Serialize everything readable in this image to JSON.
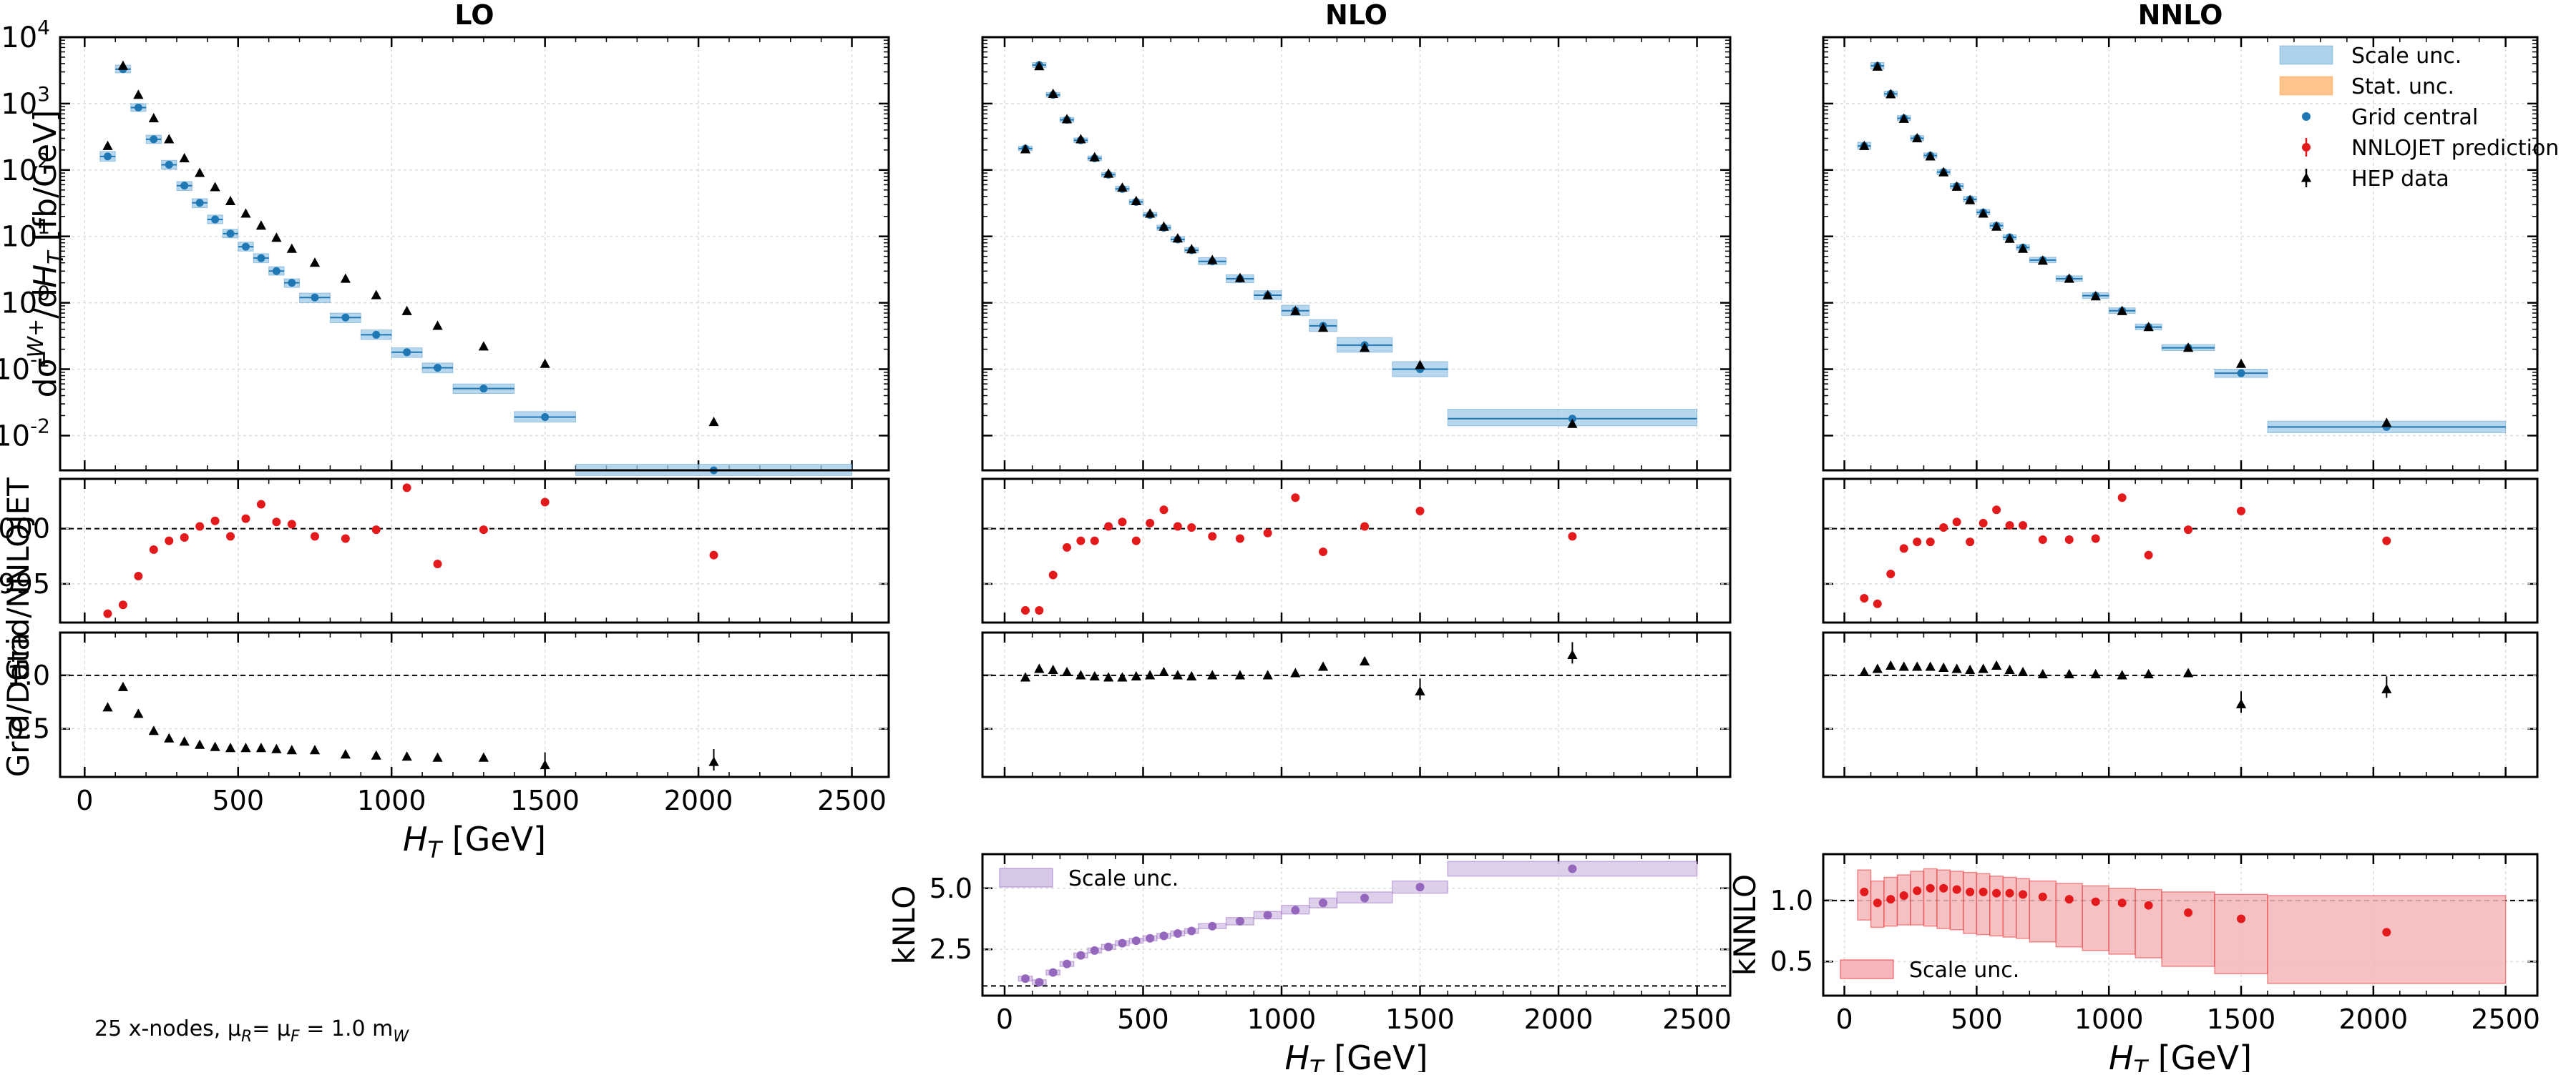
{
  "footnote": "25 x-nodes, μₘ= μⁱ = 1.0 mᵂ",
  "footnote_parts": {
    "a": "25 x-nodes, μ",
    "sub_r": "R",
    "b": "= μ",
    "sub_f": "F",
    "c": " = 1.0 m",
    "sub_w": "W"
  },
  "colors": {
    "scale_blue": "#9ec9e8",
    "scale_blue_line": "#1f77b4",
    "stat_orange": "#ffbb78",
    "grid_central": "#1f77b4",
    "nnlojet": "#e31a1c",
    "hep": "#000000",
    "kfactor_purple": "#9467bd",
    "kfactor_purple_band": "#d8c8e8",
    "knnlo_red_band": "#f4b6b8"
  },
  "chart_data": {
    "type": "scatter",
    "ht_bin_edges": [
      50,
      100,
      150,
      200,
      250,
      300,
      350,
      400,
      450,
      500,
      550,
      600,
      650,
      700,
      800,
      900,
      1000,
      1100,
      1200,
      1400,
      1600,
      2500
    ],
    "ht_bin_centers": [
      75,
      125,
      175,
      225,
      275,
      325,
      375,
      425,
      475,
      525,
      575,
      625,
      675,
      750,
      850,
      950,
      1050,
      1150,
      1300,
      1500,
      2050
    ],
    "x_axis": {
      "label": "H_T [GeV]",
      "ticks": [
        "0",
        "500",
        "1000",
        "1500",
        "2000",
        "2500"
      ],
      "xlim": [
        -80,
        2620
      ]
    },
    "columns": [
      {
        "title": "LO",
        "main": {
          "ylabel": "dσ^{W+}/dH_T  [fb/GeV]",
          "yscale": "log",
          "ylim": [
            0.003,
            10000
          ],
          "ytick_labels": [
            "10^{-2}",
            "10^{-1}",
            "10^{0}",
            "10^{1}",
            "10^{2}",
            "10^{3}",
            "10^{4}"
          ],
          "grid_central": [
            160,
            3300,
            870,
            290,
            120,
            58,
            32,
            18,
            11,
            7,
            4.7,
            3.0,
            2.0,
            1.2,
            0.6,
            0.33,
            0.18,
            0.105,
            0.051,
            0.019,
            0.003
          ],
          "scale_unc_lo": [
            135,
            2900,
            760,
            250,
            102,
            49,
            27,
            15.5,
            9.5,
            6.0,
            4.0,
            2.6,
            1.7,
            1.0,
            0.5,
            0.28,
            0.15,
            0.088,
            0.043,
            0.016,
            0.0025
          ],
          "scale_unc_hi": [
            190,
            3800,
            1000,
            335,
            140,
            67,
            37,
            21,
            12.8,
            8.2,
            5.5,
            3.5,
            2.3,
            1.4,
            0.7,
            0.39,
            0.21,
            0.124,
            0.06,
            0.023,
            0.0037
          ],
          "hep_data": [
            230,
            3700,
            1350,
            600,
            290,
            150,
            90,
            55,
            34,
            22,
            14.5,
            9.5,
            6.5,
            4.0,
            2.3,
            1.3,
            0.75,
            0.45,
            0.22,
            0.12,
            0.016
          ]
        },
        "ratio_nnlojet": {
          "ylabel": "Grid/NNLOJET",
          "ylim": [
            0.99915,
            1.00045
          ],
          "ytick_labels": [
            "0.9995",
            "1.0000"
          ],
          "values": [
            0.99923,
            0.99931,
            0.99957,
            0.99981,
            0.99989,
            0.99992,
            1.00002,
            1.00007,
            0.99993,
            1.00009,
            1.00022,
            1.00006,
            1.00004,
            0.99993,
            0.99991,
            0.99999,
            1.00037,
            0.99968,
            0.99999,
            1.00024,
            0.99976
          ]
        },
        "ratio_data": {
          "ylabel": "Grid/Data",
          "ylim": [
            0.05,
            1.4
          ],
          "ytick_labels": [
            "0.5",
            "1.0"
          ],
          "values": [
            0.7,
            0.89,
            0.64,
            0.48,
            0.41,
            0.38,
            0.35,
            0.33,
            0.32,
            0.32,
            0.32,
            0.31,
            0.3,
            0.3,
            0.26,
            0.25,
            0.24,
            0.23,
            0.23,
            0.16,
            0.19
          ]
        }
      },
      {
        "title": "NLO",
        "main": {
          "grid_central": [
            210,
            3800,
            1350,
            570,
            280,
            150,
            85,
            52,
            33,
            21,
            13.5,
            9.0,
            6.2,
            4.2,
            2.3,
            1.3,
            0.76,
            0.45,
            0.23,
            0.1,
            0.018
          ],
          "scale_unc_lo": [
            195,
            3500,
            1250,
            525,
            258,
            138,
            78,
            48,
            30,
            19.5,
            12.4,
            8.3,
            5.7,
            3.75,
            2.0,
            1.12,
            0.64,
            0.37,
            0.18,
            0.077,
            0.014
          ],
          "scale_unc_hi": [
            228,
            4150,
            1470,
            620,
            304,
            163,
            92,
            57,
            36,
            23,
            14.8,
            9.9,
            6.8,
            4.8,
            2.65,
            1.52,
            0.92,
            0.56,
            0.3,
            0.13,
            0.025
          ],
          "hep_data": [
            205,
            3650,
            1400,
            580,
            290,
            155,
            88,
            54,
            34,
            22,
            14,
            9.3,
            6.4,
            4.4,
            2.35,
            1.3,
            0.75,
            0.42,
            0.21,
            0.115,
            0.015
          ]
        },
        "ratio_nnlojet": {
          "values": [
            0.99926,
            0.99926,
            0.99958,
            0.99983,
            0.99989,
            0.99989,
            1.00002,
            1.00006,
            0.99989,
            1.00005,
            1.00017,
            1.00002,
            1.00001,
            0.99993,
            0.99991,
            0.99996,
            1.00028,
            0.99979,
            1.00002,
            1.00016,
            0.99993
          ]
        },
        "ratio_data": {
          "values": [
            0.98,
            1.06,
            1.05,
            1.03,
            1.0,
            0.99,
            0.98,
            0.98,
            0.99,
            1.0,
            1.03,
            1.0,
            0.99,
            1.0,
            1.0,
            1.0,
            1.02,
            1.08,
            1.13,
            0.85,
            1.19
          ]
        },
        "kfactor": {
          "ylabel": "kNLO",
          "ylim": [
            0.6,
            6.4
          ],
          "ytick_labels": [
            "2.5",
            "5.0"
          ],
          "values": [
            1.3,
            1.15,
            1.55,
            1.9,
            2.25,
            2.45,
            2.6,
            2.75,
            2.85,
            2.95,
            3.05,
            3.15,
            3.25,
            3.45,
            3.65,
            3.9,
            4.1,
            4.4,
            4.6,
            5.05,
            5.8
          ],
          "scale_unc_lo": [
            1.2,
            1.05,
            1.45,
            1.8,
            2.15,
            2.35,
            2.5,
            2.65,
            2.75,
            2.85,
            2.95,
            3.05,
            3.15,
            3.35,
            3.5,
            3.75,
            3.95,
            4.2,
            4.4,
            4.8,
            5.5
          ],
          "scale_unc_hi": [
            1.4,
            1.25,
            1.65,
            2.0,
            2.35,
            2.55,
            2.7,
            2.85,
            2.95,
            3.05,
            3.15,
            3.25,
            3.35,
            3.55,
            3.8,
            4.05,
            4.3,
            4.6,
            4.85,
            5.3,
            6.1
          ],
          "legend": "Scale unc."
        }
      },
      {
        "title": "NNLO",
        "main": {
          "grid_central": [
            230,
            3700,
            1400,
            600,
            300,
            165,
            93,
            57,
            36,
            23,
            14.5,
            9.7,
            6.8,
            4.4,
            2.3,
            1.28,
            0.76,
            0.43,
            0.21,
            0.087,
            0.0135
          ],
          "scale_unc_lo": [
            205,
            3300,
            1280,
            550,
            275,
            151,
            85,
            52,
            33,
            21,
            13.2,
            8.8,
            6.2,
            4.0,
            2.1,
            1.16,
            0.69,
            0.39,
            0.19,
            0.075,
            0.011
          ],
          "scale_unc_hi": [
            262,
            4150,
            1540,
            660,
            330,
            181,
            102,
            63,
            40,
            25.5,
            16,
            10.6,
            7.5,
            4.85,
            2.55,
            1.42,
            0.84,
            0.48,
            0.235,
            0.1,
            0.0165
          ],
          "hep_data": [
            230,
            3600,
            1380,
            590,
            300,
            160,
            92,
            56,
            35,
            22,
            14,
            9.2,
            6.5,
            4.3,
            2.3,
            1.25,
            0.75,
            0.43,
            0.21,
            0.12,
            0.0155
          ]
        },
        "ratio_nnlojet": {
          "values": [
            0.99937,
            0.99932,
            0.99959,
            0.99982,
            0.99988,
            0.99988,
            1.00001,
            1.00006,
            0.99988,
            1.00005,
            1.00017,
            1.00003,
            1.00003,
            0.9999,
            0.9999,
            0.99991,
            1.00028,
            0.99976,
            0.99999,
            1.00016,
            0.99989
          ]
        },
        "ratio_data": {
          "values": [
            1.03,
            1.06,
            1.09,
            1.08,
            1.08,
            1.08,
            1.07,
            1.06,
            1.05,
            1.06,
            1.09,
            1.05,
            1.03,
            1.01,
            1.01,
            1.01,
            1.0,
            1.01,
            1.02,
            0.73,
            0.87
          ]
        },
        "kfactor": {
          "ylabel": "kNNLO",
          "ylim": [
            0.22,
            1.38
          ],
          "ytick_labels": [
            "0.5",
            "1.0"
          ],
          "values": [
            1.07,
            0.98,
            1.01,
            1.04,
            1.08,
            1.1,
            1.1,
            1.09,
            1.07,
            1.07,
            1.06,
            1.06,
            1.05,
            1.03,
            1.01,
            0.99,
            0.98,
            0.96,
            0.9,
            0.85,
            0.74
          ],
          "scale_unc_lo": [
            0.84,
            0.78,
            0.79,
            0.8,
            0.8,
            0.79,
            0.77,
            0.76,
            0.73,
            0.72,
            0.71,
            0.7,
            0.69,
            0.66,
            0.62,
            0.59,
            0.56,
            0.53,
            0.46,
            0.4,
            0.32
          ],
          "scale_unc_hi": [
            1.25,
            1.16,
            1.19,
            1.21,
            1.24,
            1.26,
            1.25,
            1.24,
            1.23,
            1.22,
            1.2,
            1.19,
            1.18,
            1.16,
            1.14,
            1.12,
            1.1,
            1.09,
            1.07,
            1.05,
            1.04
          ],
          "legend": "Scale unc."
        }
      }
    ],
    "legend": [
      {
        "label": "Scale unc.",
        "kind": "band",
        "color": "#9ec9e8"
      },
      {
        "label": "Stat. unc.",
        "kind": "band",
        "color": "#ffbb78"
      },
      {
        "label": "Grid central",
        "kind": "dot",
        "color": "#1f77b4"
      },
      {
        "label": "NNLOJET prediction",
        "kind": "errpoint",
        "color": "#e31a1c"
      },
      {
        "label": "HEP data",
        "kind": "triangle",
        "color": "#000000"
      }
    ]
  }
}
